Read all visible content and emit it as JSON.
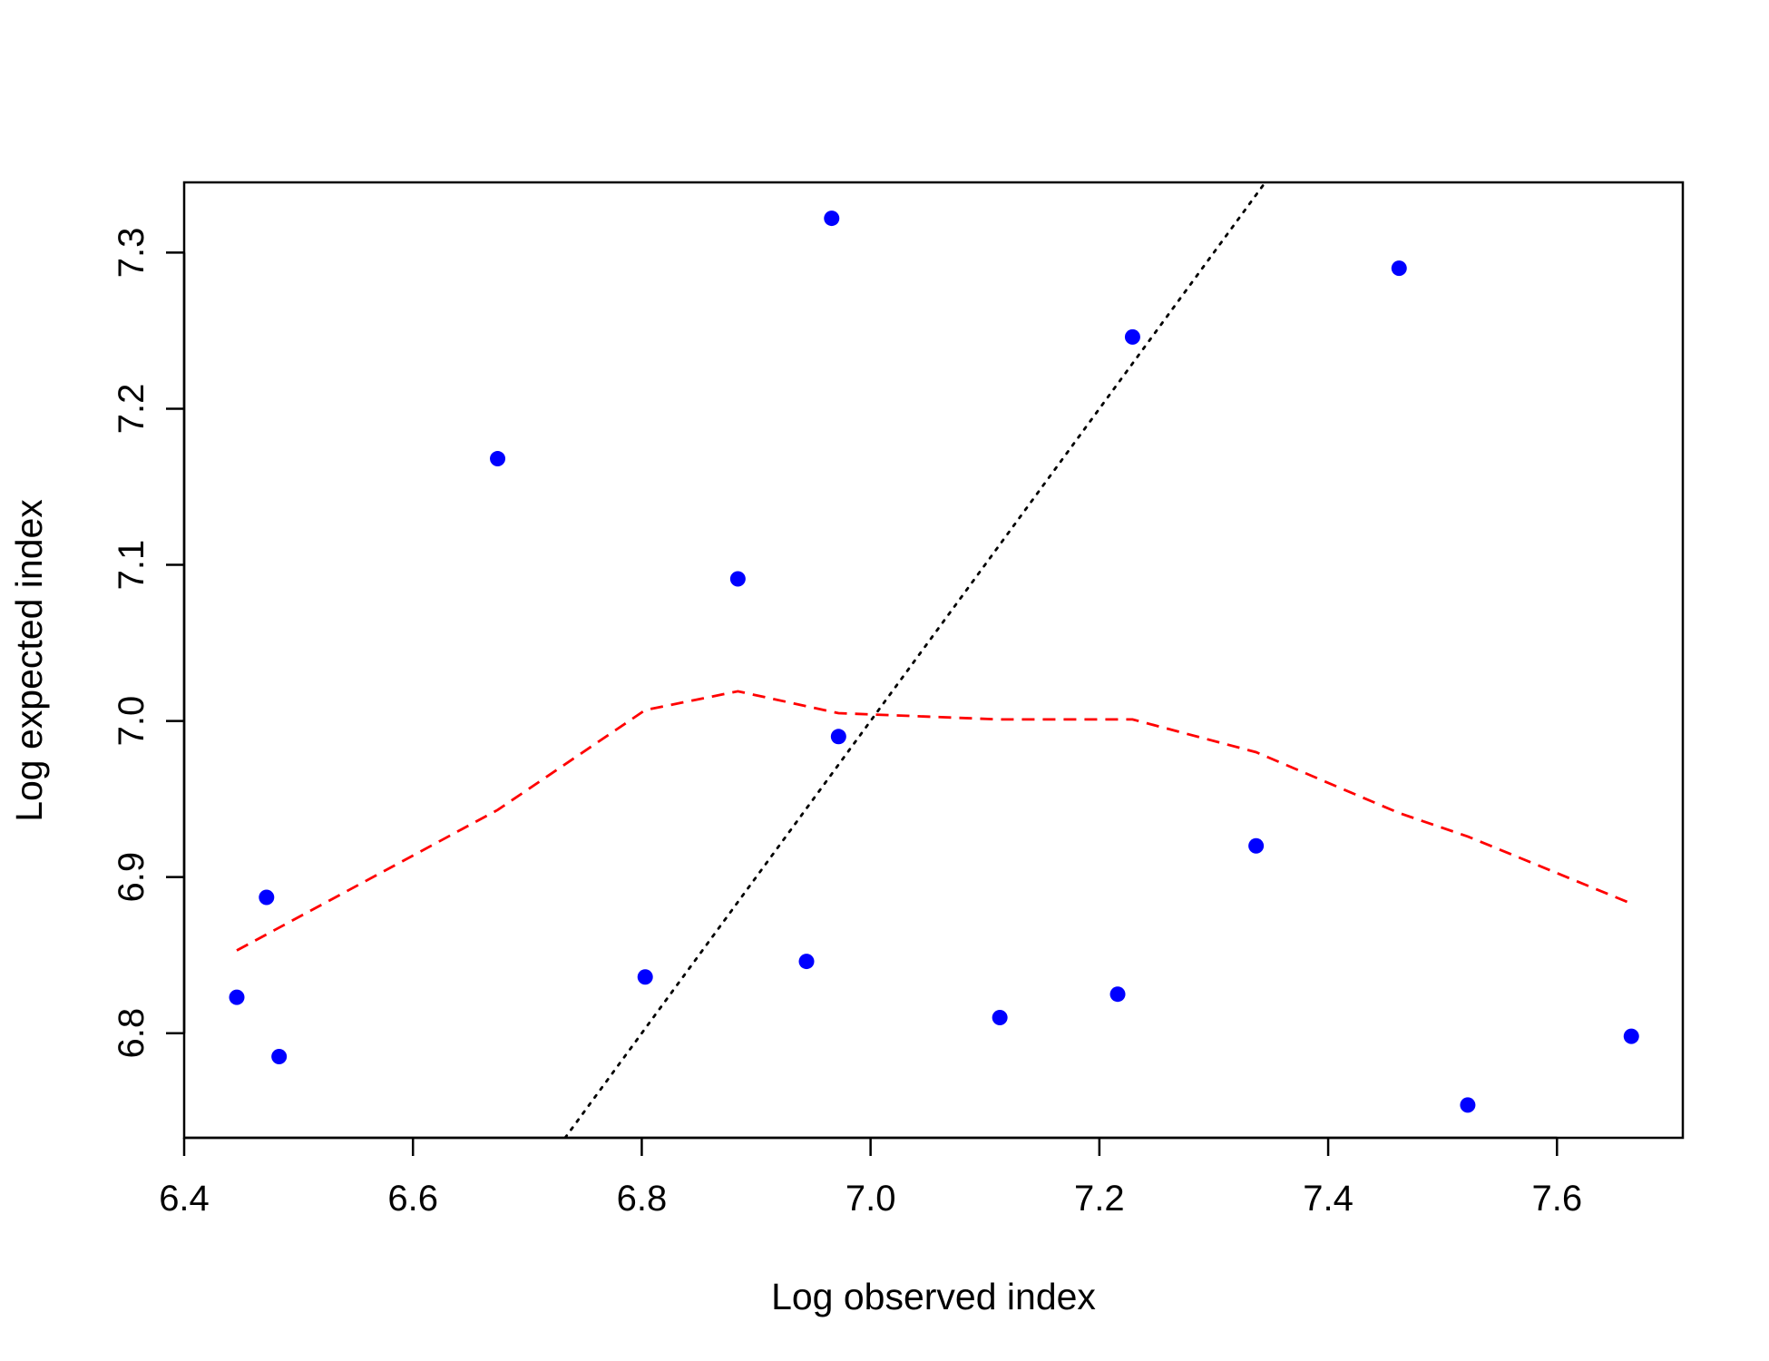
{
  "chart_data": {
    "type": "scatter",
    "xlabel": "Log observed index",
    "ylabel": "Log expected index",
    "xlim": [
      6.4,
      7.71
    ],
    "ylim": [
      6.733,
      7.345
    ],
    "x_ticks": [
      6.4,
      6.6,
      6.8,
      7.0,
      7.2,
      7.4,
      7.6
    ],
    "x_tick_labels": [
      "6.4",
      "6.6",
      "6.8",
      "7.0",
      "7.2",
      "7.4",
      "7.6"
    ],
    "y_ticks": [
      6.8,
      6.9,
      7.0,
      7.1,
      7.2,
      7.3
    ],
    "y_tick_labels": [
      "6.8",
      "6.9",
      "7.0",
      "7.1",
      "7.2",
      "7.3"
    ],
    "grid": false,
    "points": {
      "color": "#0000ff",
      "x": [
        6.446,
        6.472,
        6.483,
        6.674,
        6.803,
        6.884,
        6.944,
        6.966,
        6.972,
        7.113,
        7.216,
        7.229,
        7.337,
        7.462,
        7.522,
        7.665
      ],
      "y": [
        6.823,
        6.887,
        6.785,
        7.168,
        6.836,
        7.091,
        6.846,
        7.322,
        6.99,
        6.81,
        6.825,
        7.246,
        6.92,
        7.29,
        6.754,
        6.798
      ]
    },
    "smooth_line": {
      "color": "#ff0000",
      "style": "dashed",
      "x": [
        6.446,
        6.674,
        6.803,
        6.884,
        6.972,
        7.113,
        7.229,
        7.337,
        7.462,
        7.522,
        7.665
      ],
      "y": [
        6.853,
        6.943,
        7.007,
        7.019,
        7.005,
        7.001,
        7.001,
        6.98,
        6.941,
        6.926,
        6.883
      ]
    },
    "reference_line": {
      "color": "#000000",
      "style": "dotted",
      "x": [
        6.733,
        7.345
      ],
      "y": [
        6.733,
        7.345
      ]
    }
  }
}
